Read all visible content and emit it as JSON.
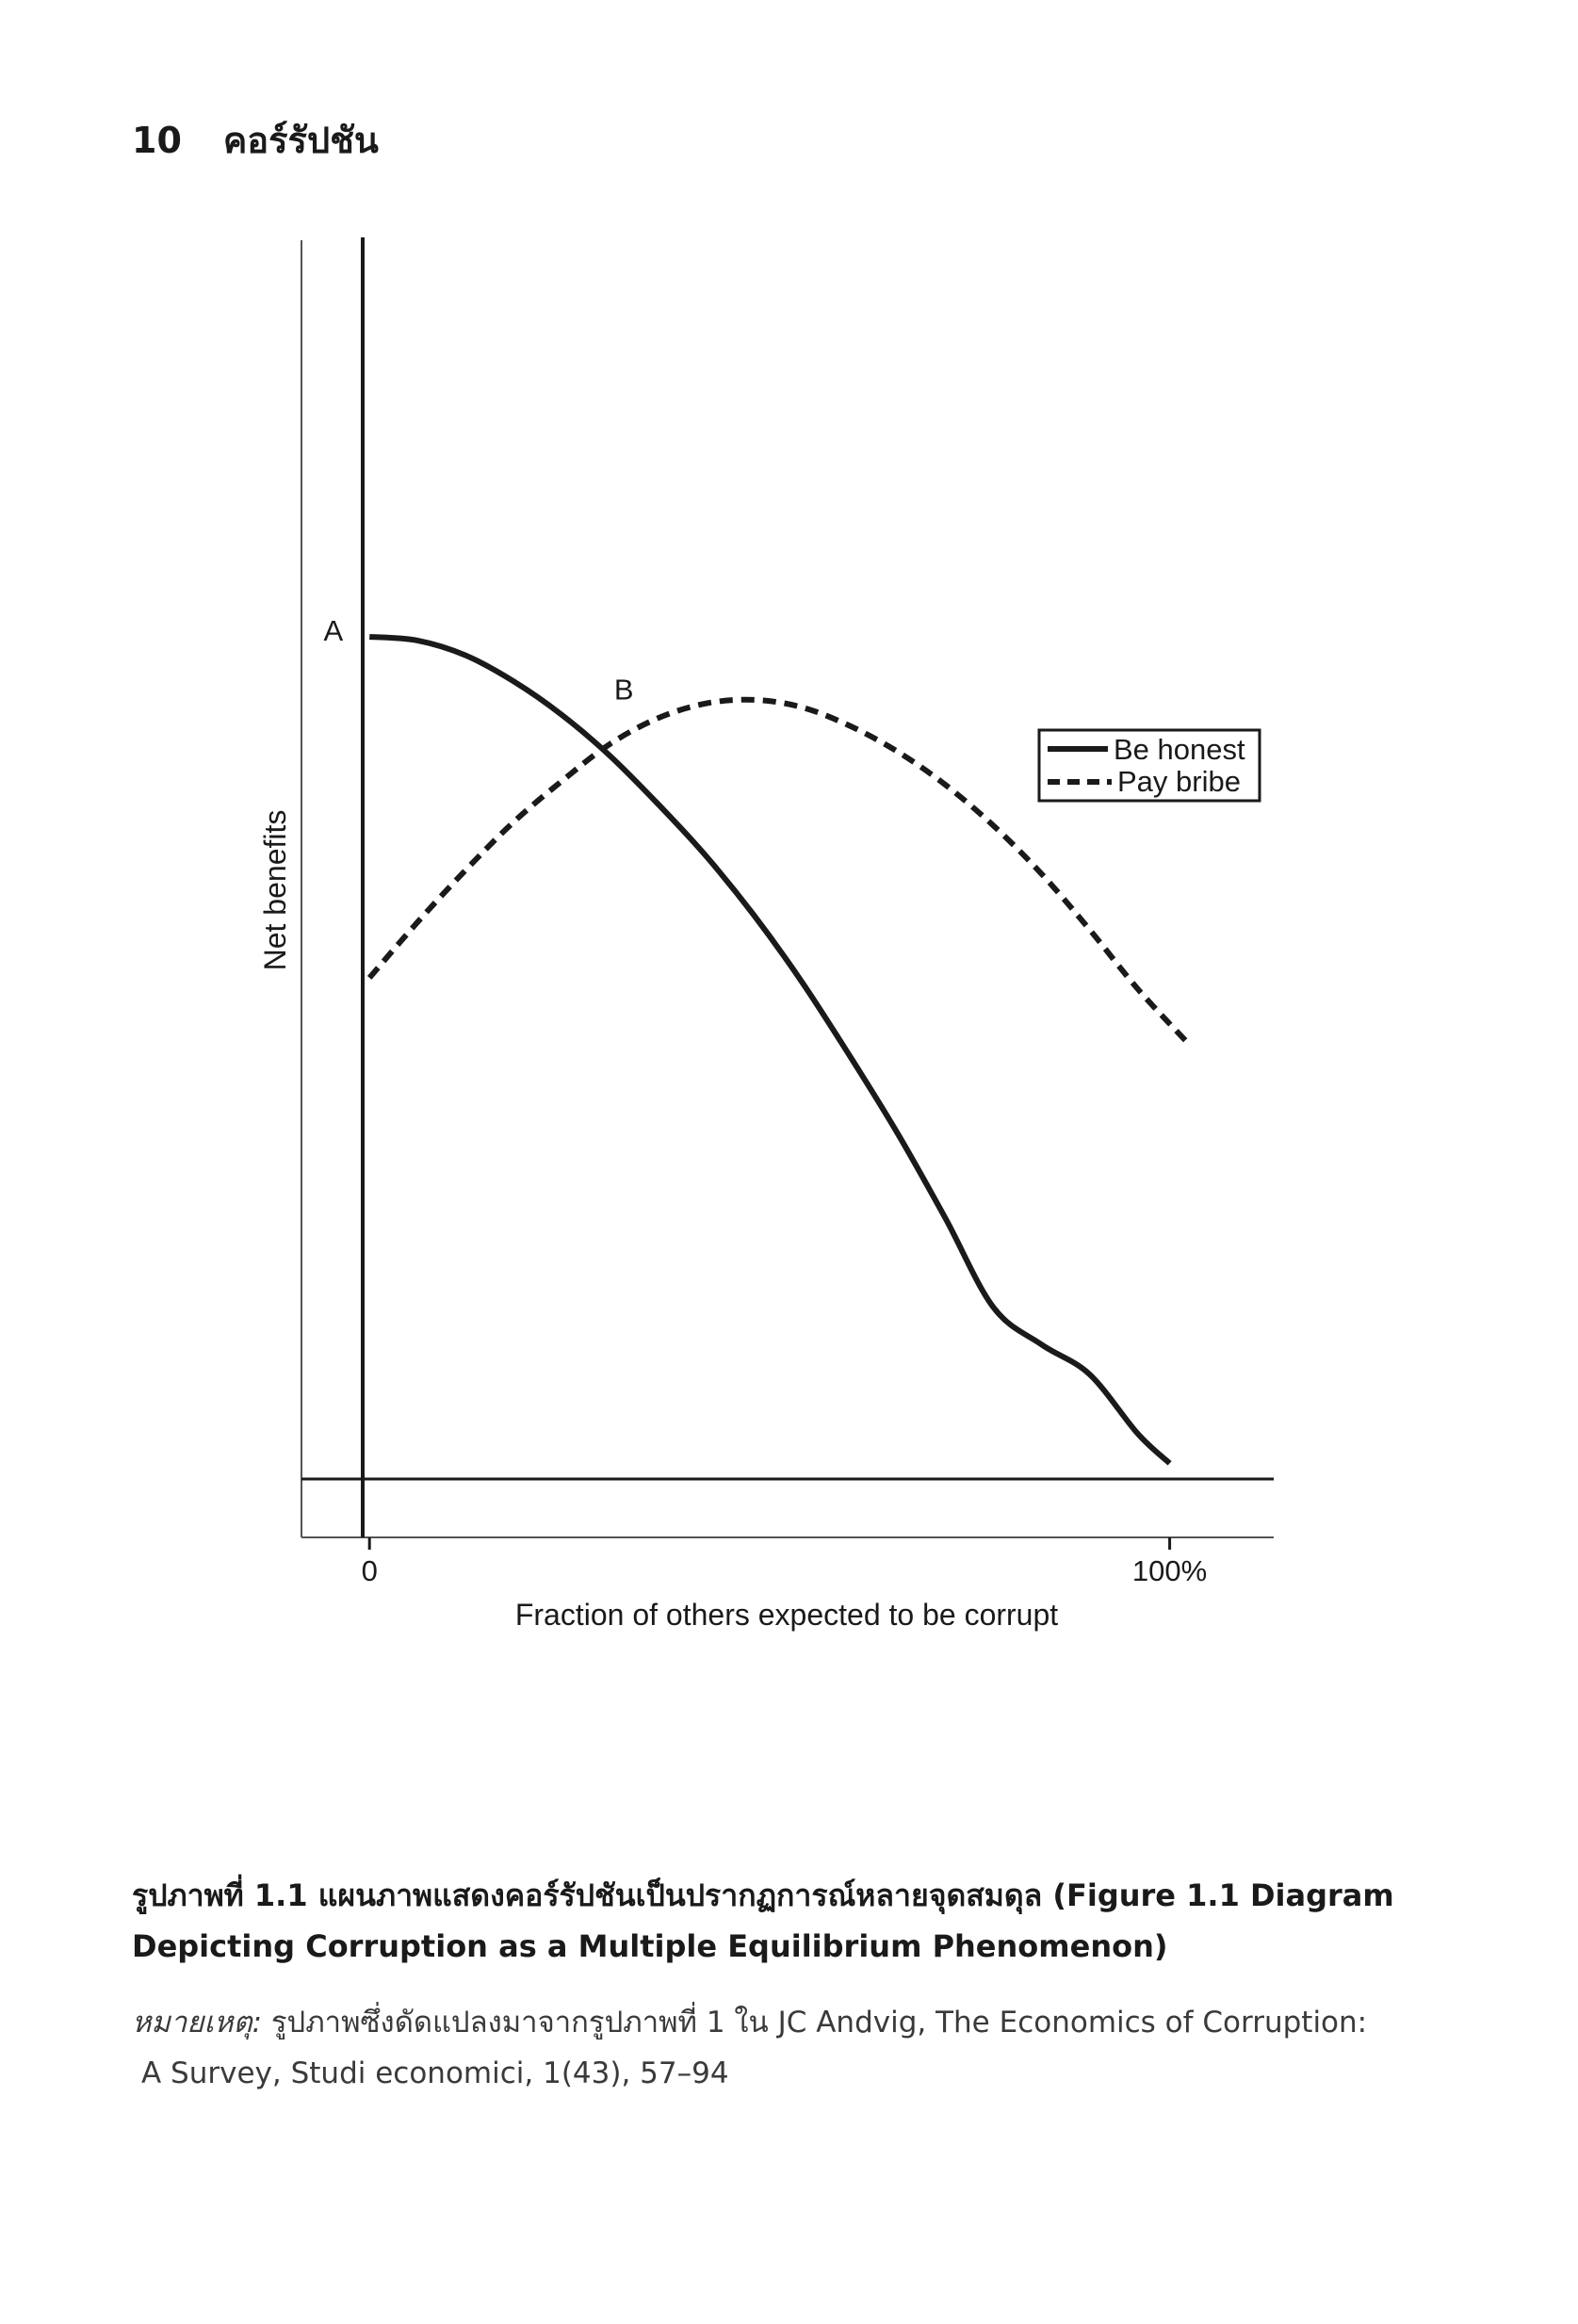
{
  "page": {
    "number": "10",
    "running_title": "คอร์รัปชัน"
  },
  "chart_data": {
    "type": "line",
    "title": "",
    "xlabel": "Fraction of others expected to be corrupt",
    "ylabel": "Net benefits",
    "x_ticks": [
      {
        "value": 0,
        "label": "0"
      },
      {
        "value": 100,
        "label": "100%"
      }
    ],
    "xlim": [
      -8.5,
      113
    ],
    "ylim": [
      -8,
      167
    ],
    "grid": false,
    "legend": "right",
    "series": [
      {
        "name": "Be honest",
        "style": "solid",
        "x": [
          0,
          6,
          12,
          18,
          24,
          30,
          36,
          42,
          48,
          54,
          60,
          66,
          72,
          78,
          84,
          90,
          96,
          100
        ],
        "y": [
          113.5,
          113.0,
          111.0,
          107.5,
          103.0,
          97.5,
          91.0,
          84.0,
          76.0,
          67.0,
          57.0,
          46.5,
          35.0,
          23.0,
          18.0,
          14.0,
          6.0,
          2.0
        ]
      },
      {
        "name": "Pay bribe",
        "style": "dashed",
        "x": [
          0,
          6,
          12,
          18,
          24,
          30,
          36,
          42,
          48,
          54,
          60,
          66,
          72,
          78,
          84,
          90,
          96,
          102
        ],
        "y": [
          67.5,
          75.0,
          82.0,
          88.5,
          94.0,
          99.0,
          102.5,
          104.5,
          105.0,
          104.0,
          101.5,
          98.0,
          93.5,
          88.0,
          81.5,
          74.0,
          66.0,
          59.0
        ]
      }
    ],
    "annotations": [
      {
        "label": "A",
        "x": 0,
        "y": 113.5
      },
      {
        "label": "B",
        "x": 32.5,
        "y": 100.5
      }
    ]
  },
  "caption": {
    "text": "รูปภาพที่ 1.1 แผนภาพแสดงคอร์รัปชันเป็นปรากฏการณ์หลายจุดสมดุล (Figure 1.1 Diagram Depicting Corruption as a Multiple Equilibrium Phenomenon)"
  },
  "note": {
    "label": "หมายเหตุ:",
    "line1": "รูปภาพซึ่งดัดแปลงมาจากรูปภาพที่ 1 ใน JC Andvig, The Economics of Corruption:",
    "line2": "A Survey, Studi economici, 1(43), 57–94"
  }
}
